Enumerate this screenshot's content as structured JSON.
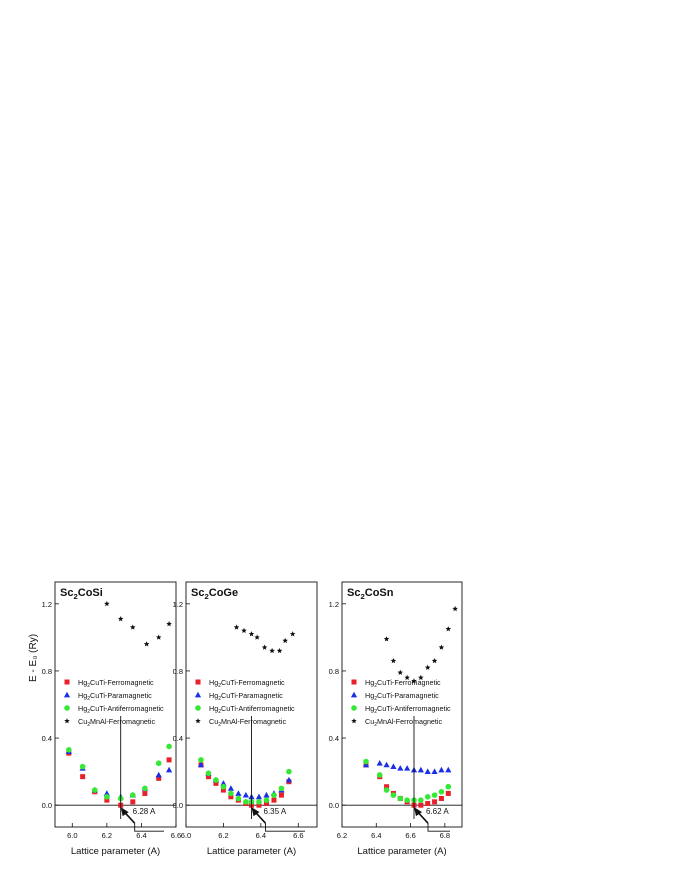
{
  "figure": {
    "ylabel_shared": "E - E₀ (Ry)"
  },
  "chart_data": [
    {
      "type": "scatter",
      "title": "Sc₂CoSi",
      "xlabel": "Lattice parameter (A)",
      "xlim": [
        5.9,
        6.6
      ],
      "ylim": [
        -0.13,
        1.33
      ],
      "xticks": [
        6.0,
        6.2,
        6.4,
        6.6
      ],
      "yticks": [
        0.0,
        0.4,
        0.8,
        1.2
      ],
      "ytick_labels": [
        "0.0",
        "0.4",
        "0.8",
        "1.2"
      ],
      "annotation": "6.28 A",
      "annotation_x": 6.28,
      "legend_position": "middle-left",
      "series": [
        {
          "name": "Hg₂CuTi-Ferromagnetic",
          "marker": "square",
          "color": "#e8202a",
          "x": [
            5.98,
            6.06,
            6.13,
            6.2,
            6.28,
            6.35,
            6.42,
            6.5,
            6.56
          ],
          "y": [
            0.31,
            0.17,
            0.08,
            0.03,
            0.0,
            0.02,
            0.07,
            0.16,
            0.27
          ]
        },
        {
          "name": "Hg₂CuTi-Paramagnetic",
          "marker": "triangle",
          "color": "#1a2fe6",
          "x": [
            5.98,
            6.06,
            6.13,
            6.2,
            6.28,
            6.35,
            6.42,
            6.5,
            6.56
          ],
          "y": [
            0.32,
            0.22,
            0.09,
            0.07,
            0.05,
            0.06,
            0.1,
            0.18,
            0.21
          ]
        },
        {
          "name": "Hg₂CuTi-Antiferromagnetic",
          "marker": "circle",
          "color": "#35e835",
          "x": [
            5.98,
            6.06,
            6.13,
            6.2,
            6.28,
            6.35,
            6.42,
            6.5,
            6.56
          ],
          "y": [
            0.33,
            0.23,
            0.09,
            0.05,
            0.04,
            0.06,
            0.1,
            0.25,
            0.35
          ]
        },
        {
          "name": "Cu₂MnAl-Ferromagnetic",
          "marker": "star",
          "color": "#111111",
          "x": [
            6.2,
            6.28,
            6.35,
            6.43,
            6.5,
            6.56
          ],
          "y": [
            1.2,
            1.11,
            1.06,
            0.96,
            1.0,
            1.08
          ]
        }
      ]
    },
    {
      "type": "scatter",
      "title": "Sc₂CoGe",
      "xlabel": "Lattice parameter (A)",
      "xlim": [
        6.0,
        6.7
      ],
      "ylim": [
        -0.13,
        1.33
      ],
      "xticks": [
        6.0,
        6.2,
        6.4,
        6.6
      ],
      "yticks": [
        0.0,
        0.4,
        0.8,
        1.2
      ],
      "ytick_labels": [
        "0.0",
        "0.4",
        "0.8",
        "1.2"
      ],
      "annotation": "6.35 A",
      "annotation_x": 6.35,
      "legend_position": "middle-left",
      "series": [
        {
          "name": "Hg₂CuTi-Ferromagnetic",
          "marker": "square",
          "color": "#e8202a",
          "x": [
            6.08,
            6.12,
            6.16,
            6.2,
            6.24,
            6.28,
            6.32,
            6.35,
            6.39,
            6.43,
            6.47,
            6.51,
            6.55
          ],
          "y": [
            0.24,
            0.17,
            0.13,
            0.09,
            0.05,
            0.03,
            0.01,
            0.0,
            0.0,
            0.01,
            0.03,
            0.06,
            0.14
          ]
        },
        {
          "name": "Hg₂CuTi-Paramagnetic",
          "marker": "triangle",
          "color": "#1a2fe6",
          "x": [
            6.08,
            6.12,
            6.16,
            6.2,
            6.24,
            6.28,
            6.32,
            6.35,
            6.39,
            6.43,
            6.47,
            6.51,
            6.55
          ],
          "y": [
            0.24,
            0.19,
            0.15,
            0.13,
            0.1,
            0.07,
            0.06,
            0.05,
            0.05,
            0.06,
            0.07,
            0.09,
            0.15
          ]
        },
        {
          "name": "Hg₂CuTi-Antiferromagnetic",
          "marker": "circle",
          "color": "#35e835",
          "x": [
            6.08,
            6.12,
            6.16,
            6.2,
            6.24,
            6.28,
            6.32,
            6.35,
            6.39,
            6.43,
            6.47,
            6.51,
            6.55
          ],
          "y": [
            0.27,
            0.19,
            0.15,
            0.11,
            0.07,
            0.04,
            0.02,
            0.02,
            0.02,
            0.03,
            0.06,
            0.1,
            0.2
          ]
        },
        {
          "name": "Cu₂MnAl-Ferromagnetic",
          "marker": "star",
          "color": "#111111",
          "x": [
            6.27,
            6.31,
            6.35,
            6.38,
            6.42,
            6.46,
            6.5,
            6.53,
            6.57
          ],
          "y": [
            1.06,
            1.04,
            1.02,
            1.0,
            0.94,
            0.92,
            0.92,
            0.98,
            1.02
          ]
        }
      ]
    },
    {
      "type": "scatter",
      "title": "Sc₂CoSn",
      "xlabel": "Lattice parameter (A)",
      "xlim": [
        6.2,
        6.9
      ],
      "ylim": [
        -0.13,
        1.33
      ],
      "xticks": [
        6.2,
        6.4,
        6.6,
        6.8
      ],
      "yticks": [
        0.0,
        0.4,
        0.8,
        1.2
      ],
      "ytick_labels": [
        "0.0",
        "0.4",
        "0.8",
        "1.2"
      ],
      "annotation": "6.62 A",
      "annotation_x": 6.62,
      "legend_position": "middle-left",
      "series": [
        {
          "name": "Hg₂CuTi-Ferromagnetic",
          "marker": "square",
          "color": "#e8202a",
          "x": [
            6.34,
            6.42,
            6.46,
            6.5,
            6.54,
            6.58,
            6.62,
            6.66,
            6.7,
            6.74,
            6.78,
            6.82
          ],
          "y": [
            0.24,
            0.17,
            0.11,
            0.07,
            0.04,
            0.02,
            0.0,
            0.0,
            0.01,
            0.02,
            0.04,
            0.07
          ]
        },
        {
          "name": "Hg₂CuTi-Paramagnetic",
          "marker": "triangle",
          "color": "#1a2fe6",
          "x": [
            6.34,
            6.42,
            6.46,
            6.5,
            6.54,
            6.58,
            6.62,
            6.66,
            6.7,
            6.74,
            6.78,
            6.82
          ],
          "y": [
            0.24,
            0.25,
            0.24,
            0.23,
            0.22,
            0.22,
            0.21,
            0.21,
            0.2,
            0.2,
            0.21,
            0.21
          ]
        },
        {
          "name": "Hg₂CuTi-Antiferromagnetic",
          "marker": "circle",
          "color": "#35e835",
          "x": [
            6.34,
            6.42,
            6.46,
            6.5,
            6.54,
            6.58,
            6.62,
            6.66,
            6.7,
            6.74,
            6.78,
            6.82
          ],
          "y": [
            0.26,
            0.18,
            0.09,
            0.06,
            0.04,
            0.03,
            0.03,
            0.03,
            0.05,
            0.06,
            0.08,
            0.11
          ]
        },
        {
          "name": "Cu₂MnAl-Ferromagnetic",
          "marker": "star",
          "color": "#111111",
          "x": [
            6.46,
            6.5,
            6.54,
            6.58,
            6.62,
            6.66,
            6.7,
            6.74,
            6.78,
            6.82,
            6.86
          ],
          "y": [
            0.99,
            0.86,
            0.79,
            0.76,
            0.74,
            0.76,
            0.82,
            0.86,
            0.94,
            1.05,
            1.17
          ]
        }
      ]
    }
  ]
}
